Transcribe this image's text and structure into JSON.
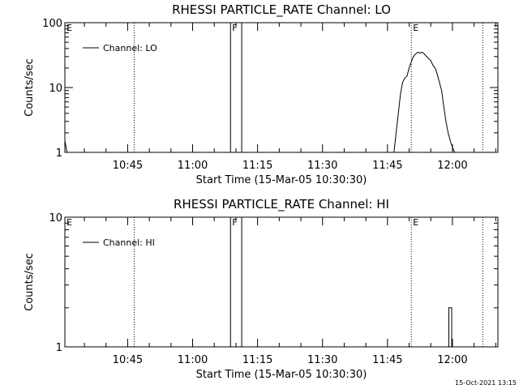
{
  "footer": {
    "timestamp": "15-Oct-2021 13:15"
  },
  "chart_data": [
    {
      "type": "line",
      "title": "RHESSI PARTICLE_RATE Channel: LO",
      "xlabel": "Start Time (15-Mar-05 10:30:30)",
      "ylabel": "Counts/sec",
      "yscale": "log",
      "ylim": [
        1,
        100
      ],
      "xlim": [
        "10:30:30",
        "12:10:30"
      ],
      "x_ticks": [
        "10:45",
        "11:00",
        "11:15",
        "11:30",
        "11:45",
        "12:00"
      ],
      "y_ticks": [
        {
          "value": 1,
          "label": "1"
        },
        {
          "value": 10,
          "label": "10"
        },
        {
          "value": 100,
          "label": "100"
        }
      ],
      "legend": {
        "position": "top-left",
        "entries": [
          "Channel: LO"
        ]
      },
      "series": [
        {
          "name": "Channel: LO",
          "x": [
            "10:30:30",
            "10:31:00",
            "11:46:30",
            "11:47:00",
            "11:47:30",
            "11:48:00",
            "11:48:30",
            "11:49:00",
            "11:49:30",
            "11:50:00",
            "11:50:30",
            "11:51:00",
            "11:51:30",
            "11:52:00",
            "11:52:30",
            "11:53:00",
            "11:53:30",
            "11:54:00",
            "11:54:30",
            "11:55:00",
            "11:55:30",
            "11:56:00",
            "11:56:30",
            "11:57:00",
            "11:57:30",
            "11:58:00",
            "11:58:30",
            "11:59:00",
            "11:59:30",
            "12:00:00",
            "12:00:30"
          ],
          "values": [
            1.5,
            1,
            1,
            2,
            4,
            8,
            12,
            14,
            15,
            20,
            25,
            30,
            33,
            35,
            34,
            35,
            33,
            30,
            28,
            26,
            22,
            20,
            16,
            12,
            9,
            5,
            3,
            2,
            1.5,
            1.2,
            1
          ]
        }
      ],
      "annotations": [
        {
          "label": "E",
          "time": "10:30:30"
        },
        {
          "label": "F",
          "time": "11:08:45"
        },
        {
          "label": "E",
          "time": "11:50:30"
        }
      ],
      "dotted_lines": [
        "10:46:30",
        "11:50:30",
        "12:07:00"
      ],
      "bars": [
        {
          "start": "11:08:45",
          "end": "11:11:20"
        }
      ]
    },
    {
      "type": "line",
      "title": "RHESSI PARTICLE_RATE Channel: HI",
      "xlabel": "Start Time (15-Mar-05 10:30:30)",
      "ylabel": "Counts/sec",
      "yscale": "log",
      "ylim": [
        1,
        10
      ],
      "xlim": [
        "10:30:30",
        "12:10:30"
      ],
      "x_ticks": [
        "10:45",
        "11:00",
        "11:15",
        "11:30",
        "11:45",
        "12:00"
      ],
      "y_ticks": [
        {
          "value": 1,
          "label": "1"
        },
        {
          "value": 10,
          "label": "10"
        }
      ],
      "legend": {
        "position": "top-left",
        "entries": [
          "Channel: HI"
        ]
      },
      "series": [
        {
          "name": "Channel: HI",
          "x": [
            "11:59:10",
            "11:59:10",
            "11:59:50",
            "11:59:50"
          ],
          "values": [
            1,
            2,
            2,
            1
          ]
        }
      ],
      "annotations": [
        {
          "label": "E",
          "time": "10:30:30"
        },
        {
          "label": "F",
          "time": "11:08:45"
        },
        {
          "label": "E",
          "time": "11:50:30"
        }
      ],
      "dotted_lines": [
        "10:46:30",
        "11:50:30",
        "12:07:00"
      ],
      "bars": [
        {
          "start": "11:08:45",
          "end": "11:11:20"
        }
      ]
    }
  ]
}
